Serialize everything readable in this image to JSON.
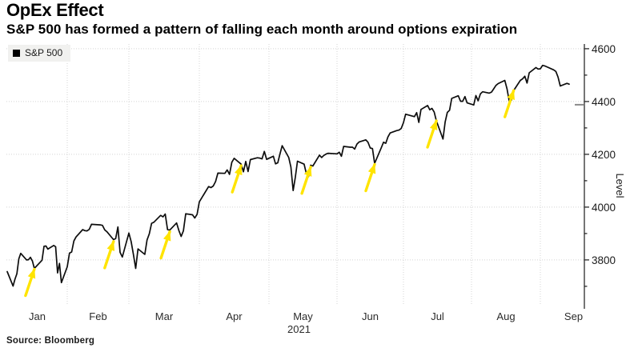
{
  "header": {
    "title": "OpEx Effect",
    "subtitle": "S&P 500 has formed a pattern of falling each month around options expiration"
  },
  "legend": {
    "label": "S&P 500",
    "swatch_color": "#000000"
  },
  "source": {
    "text": "Source: Bloomberg"
  },
  "chart_data": {
    "type": "line",
    "title": "OpEx Effect",
    "subtitle": "S&P 500 has formed a pattern of falling each month around options expiration",
    "ylabel": "Level",
    "ylim": [
      3618,
      4618
    ],
    "y_major_ticks": [
      3800,
      4000,
      4200,
      4400,
      4600
    ],
    "y_minor_ticks": [
      3700,
      3900,
      4100,
      4300,
      4500
    ],
    "x_tick_labels": [
      "Jan",
      "Feb",
      "Mar",
      "Apr",
      "May",
      "Jun",
      "Jul",
      "Aug",
      "Sep"
    ],
    "x_year_label": "2021",
    "grid": "dotted",
    "legend_position": "top-left",
    "line_color": "#0d0d0d",
    "arrow_color": "#ffe400",
    "y_axis_marker": 4388,
    "series": [
      {
        "name": "S&P 500",
        "points": [
          [
            "01-01",
            3756
          ],
          [
            "01-04",
            3701
          ],
          [
            "01-05",
            3727
          ],
          [
            "01-06",
            3748
          ],
          [
            "01-07",
            3804
          ],
          [
            "01-08",
            3825
          ],
          [
            "01-11",
            3800
          ],
          [
            "01-12",
            3801
          ],
          [
            "01-13",
            3810
          ],
          [
            "01-14",
            3796
          ],
          [
            "01-15",
            3768
          ],
          [
            "01-19",
            3799
          ],
          [
            "01-20",
            3852
          ],
          [
            "01-21",
            3853
          ],
          [
            "01-22",
            3841
          ],
          [
            "01-25",
            3855
          ],
          [
            "01-26",
            3850
          ],
          [
            "01-27",
            3751
          ],
          [
            "01-28",
            3787
          ],
          [
            "01-29",
            3714
          ],
          [
            "02-01",
            3774
          ],
          [
            "02-02",
            3826
          ],
          [
            "02-03",
            3830
          ],
          [
            "02-04",
            3872
          ],
          [
            "02-05",
            3887
          ],
          [
            "02-08",
            3915
          ],
          [
            "02-09",
            3911
          ],
          [
            "02-10",
            3910
          ],
          [
            "02-11",
            3916
          ],
          [
            "02-12",
            3935
          ],
          [
            "02-16",
            3933
          ],
          [
            "02-17",
            3931
          ],
          [
            "02-18",
            3914
          ],
          [
            "02-19",
            3907
          ],
          [
            "02-22",
            3877
          ],
          [
            "02-23",
            3881
          ],
          [
            "02-24",
            3925
          ],
          [
            "02-25",
            3829
          ],
          [
            "02-26",
            3811
          ],
          [
            "03-01",
            3902
          ],
          [
            "03-02",
            3870
          ],
          [
            "03-03",
            3820
          ],
          [
            "03-04",
            3768
          ],
          [
            "03-05",
            3842
          ],
          [
            "03-08",
            3821
          ],
          [
            "03-09",
            3876
          ],
          [
            "03-10",
            3899
          ],
          [
            "03-11",
            3939
          ],
          [
            "03-12",
            3943
          ],
          [
            "03-15",
            3969
          ],
          [
            "03-16",
            3963
          ],
          [
            "03-17",
            3974
          ],
          [
            "03-18",
            3915
          ],
          [
            "03-19",
            3913
          ],
          [
            "03-22",
            3940
          ],
          [
            "03-23",
            3911
          ],
          [
            "03-24",
            3889
          ],
          [
            "03-25",
            3910
          ],
          [
            "03-26",
            3975
          ],
          [
            "03-29",
            3971
          ],
          [
            "03-30",
            3959
          ],
          [
            "03-31",
            3973
          ],
          [
            "04-01",
            4020
          ],
          [
            "04-05",
            4078
          ],
          [
            "04-06",
            4074
          ],
          [
            "04-07",
            4080
          ],
          [
            "04-08",
            4097
          ],
          [
            "04-09",
            4129
          ],
          [
            "04-12",
            4128
          ],
          [
            "04-13",
            4141
          ],
          [
            "04-14",
            4124
          ],
          [
            "04-15",
            4170
          ],
          [
            "04-16",
            4185
          ],
          [
            "04-19",
            4163
          ],
          [
            "04-20",
            4134
          ],
          [
            "04-21",
            4173
          ],
          [
            "04-22",
            4135
          ],
          [
            "04-23",
            4180
          ],
          [
            "04-26",
            4187
          ],
          [
            "04-27",
            4186
          ],
          [
            "04-28",
            4183
          ],
          [
            "04-29",
            4211
          ],
          [
            "04-30",
            4181
          ],
          [
            "05-03",
            4193
          ],
          [
            "05-04",
            4164
          ],
          [
            "05-05",
            4168
          ],
          [
            "05-06",
            4201
          ],
          [
            "05-07",
            4233
          ],
          [
            "05-10",
            4188
          ],
          [
            "05-11",
            4152
          ],
          [
            "05-12",
            4063
          ],
          [
            "05-13",
            4113
          ],
          [
            "05-14",
            4174
          ],
          [
            "05-17",
            4163
          ],
          [
            "05-18",
            4128
          ],
          [
            "05-19",
            4116
          ],
          [
            "05-20",
            4159
          ],
          [
            "05-21",
            4156
          ],
          [
            "05-24",
            4197
          ],
          [
            "05-25",
            4188
          ],
          [
            "05-26",
            4196
          ],
          [
            "05-27",
            4201
          ],
          [
            "05-28",
            4204
          ],
          [
            "06-01",
            4202
          ],
          [
            "06-02",
            4208
          ],
          [
            "06-03",
            4193
          ],
          [
            "06-04",
            4230
          ],
          [
            "06-07",
            4227
          ],
          [
            "06-08",
            4227
          ],
          [
            "06-09",
            4220
          ],
          [
            "06-10",
            4239
          ],
          [
            "06-11",
            4247
          ],
          [
            "06-14",
            4255
          ],
          [
            "06-15",
            4246
          ],
          [
            "06-16",
            4224
          ],
          [
            "06-17",
            4222
          ],
          [
            "06-18",
            4166
          ],
          [
            "06-21",
            4225
          ],
          [
            "06-22",
            4246
          ],
          [
            "06-23",
            4242
          ],
          [
            "06-24",
            4266
          ],
          [
            "06-25",
            4281
          ],
          [
            "06-28",
            4290
          ],
          [
            "06-29",
            4292
          ],
          [
            "06-30",
            4298
          ],
          [
            "07-01",
            4320
          ],
          [
            "07-02",
            4352
          ],
          [
            "07-06",
            4343
          ],
          [
            "07-07",
            4358
          ],
          [
            "07-08",
            4321
          ],
          [
            "07-09",
            4370
          ],
          [
            "07-12",
            4385
          ],
          [
            "07-13",
            4369
          ],
          [
            "07-14",
            4374
          ],
          [
            "07-15",
            4360
          ],
          [
            "07-16",
            4327
          ],
          [
            "07-19",
            4258
          ],
          [
            "07-20",
            4323
          ],
          [
            "07-21",
            4359
          ],
          [
            "07-22",
            4367
          ],
          [
            "07-23",
            4412
          ],
          [
            "07-26",
            4422
          ],
          [
            "07-27",
            4401
          ],
          [
            "07-28",
            4401
          ],
          [
            "07-29",
            4419
          ],
          [
            "07-30",
            4395
          ],
          [
            "08-02",
            4387
          ],
          [
            "08-03",
            4423
          ],
          [
            "08-04",
            4403
          ],
          [
            "08-05",
            4429
          ],
          [
            "08-06",
            4437
          ],
          [
            "08-09",
            4432
          ],
          [
            "08-10",
            4436
          ],
          [
            "08-11",
            4448
          ],
          [
            "08-12",
            4461
          ],
          [
            "08-13",
            4468
          ],
          [
            "08-16",
            4480
          ],
          [
            "08-17",
            4448
          ],
          [
            "08-18",
            4400
          ],
          [
            "08-19",
            4405
          ],
          [
            "08-20",
            4442
          ],
          [
            "08-23",
            4480
          ],
          [
            "08-24",
            4486
          ],
          [
            "08-25",
            4496
          ],
          [
            "08-26",
            4470
          ],
          [
            "08-27",
            4509
          ],
          [
            "08-30",
            4529
          ],
          [
            "08-31",
            4523
          ],
          [
            "09-01",
            4524
          ],
          [
            "09-02",
            4537
          ],
          [
            "09-03",
            4535
          ],
          [
            "09-07",
            4520
          ],
          [
            "09-08",
            4514
          ],
          [
            "09-09",
            4493
          ],
          [
            "09-10",
            4459
          ],
          [
            "09-13",
            4469
          ],
          [
            "09-14",
            4466
          ]
        ]
      }
    ],
    "annotations": {
      "opex_arrows": [
        {
          "date": "01-15",
          "value": 3768
        },
        {
          "date": "02-22",
          "value": 3873
        },
        {
          "date": "03-19",
          "value": 3910
        },
        {
          "date": "04-19",
          "value": 4160
        },
        {
          "date": "05-20",
          "value": 4155
        },
        {
          "date": "06-18",
          "value": 4165
        },
        {
          "date": "07-16",
          "value": 4330
        },
        {
          "date": "08-20",
          "value": 4445
        }
      ]
    }
  }
}
